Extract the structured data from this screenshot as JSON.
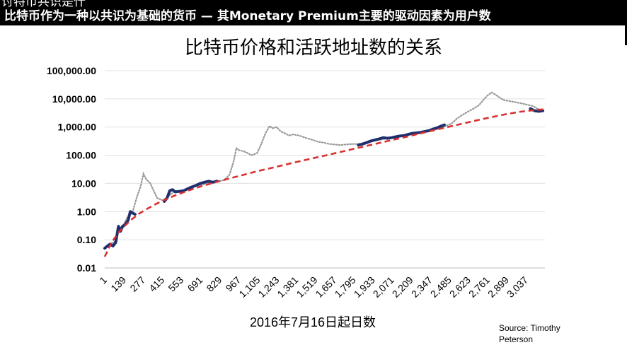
{
  "banner": {
    "top_partial": "讨特币共识是什",
    "headline": "比特币作为一种以共识为基础的货币 — 其Monetary Premium主要的驱动因素为用户数"
  },
  "source": {
    "line1": "Source: Timothy",
    "line2": "Peterson"
  },
  "chart_data": {
    "type": "line",
    "title": "比特币价格和活跃地址数的关系",
    "xlabel": "2016年7月16日起日数",
    "ylabel": "",
    "yscale": "log",
    "ylim": [
      0.01,
      100000
    ],
    "xlim": [
      1,
      3175
    ],
    "y_ticks": [
      {
        "value": 100000,
        "label": "100,000.00"
      },
      {
        "value": 10000,
        "label": "10,000.00"
      },
      {
        "value": 1000,
        "label": "1,000.00"
      },
      {
        "value": 100,
        "label": "100.00"
      },
      {
        "value": 10,
        "label": "10.00"
      },
      {
        "value": 1,
        "label": "1.00"
      },
      {
        "value": 0.1,
        "label": "0.10"
      },
      {
        "value": 0.01,
        "label": "0.01"
      }
    ],
    "x_ticks": [
      {
        "value": 1,
        "label": "1"
      },
      {
        "value": 139,
        "label": "139"
      },
      {
        "value": 277,
        "label": "277"
      },
      {
        "value": 415,
        "label": "415"
      },
      {
        "value": 553,
        "label": "553"
      },
      {
        "value": 691,
        "label": "691"
      },
      {
        "value": 829,
        "label": "829"
      },
      {
        "value": 967,
        "label": "967"
      },
      {
        "value": 1105,
        "label": "1,105"
      },
      {
        "value": 1243,
        "label": "1,243"
      },
      {
        "value": 1381,
        "label": "1,381"
      },
      {
        "value": 1519,
        "label": "1,519"
      },
      {
        "value": 1657,
        "label": "1,657"
      },
      {
        "value": 1795,
        "label": "1,795"
      },
      {
        "value": 1933,
        "label": "1,933"
      },
      {
        "value": 2071,
        "label": "2,071"
      },
      {
        "value": 2209,
        "label": "2,209"
      },
      {
        "value": 2347,
        "label": "2,347"
      },
      {
        "value": 2485,
        "label": "2,485"
      },
      {
        "value": 2623,
        "label": "2,623"
      },
      {
        "value": 2761,
        "label": "2,761"
      },
      {
        "value": 2899,
        "label": "2,899"
      },
      {
        "value": 3037,
        "label": "3,037"
      }
    ],
    "grid": "horizontal",
    "legend": "none",
    "series": [
      {
        "role": "price-dotted",
        "color": "#999999",
        "points": [
          [
            1,
            0.05
          ],
          [
            40,
            0.07
          ],
          [
            80,
            0.09
          ],
          [
            100,
            0.25
          ],
          [
            130,
            0.3
          ],
          [
            170,
            0.7
          ],
          [
            200,
            0.9
          ],
          [
            230,
            3
          ],
          [
            260,
            8
          ],
          [
            280,
            22
          ],
          [
            300,
            14
          ],
          [
            330,
            10
          ],
          [
            350,
            6
          ],
          [
            380,
            3
          ],
          [
            420,
            2.5
          ],
          [
            460,
            3.5
          ],
          [
            500,
            5
          ],
          [
            540,
            5.5
          ],
          [
            580,
            6
          ],
          [
            620,
            7
          ],
          [
            660,
            8
          ],
          [
            700,
            9
          ],
          [
            740,
            10
          ],
          [
            780,
            11
          ],
          [
            820,
            12
          ],
          [
            860,
            13
          ],
          [
            900,
            20
          ],
          [
            930,
            60
          ],
          [
            950,
            180
          ],
          [
            970,
            150
          ],
          [
            1000,
            140
          ],
          [
            1030,
            120
          ],
          [
            1060,
            100
          ],
          [
            1100,
            120
          ],
          [
            1130,
            250
          ],
          [
            1160,
            600
          ],
          [
            1190,
            1100
          ],
          [
            1210,
            900
          ],
          [
            1240,
            1000
          ],
          [
            1270,
            700
          ],
          [
            1300,
            600
          ],
          [
            1330,
            500
          ],
          [
            1360,
            550
          ],
          [
            1400,
            500
          ],
          [
            1430,
            450
          ],
          [
            1460,
            400
          ],
          [
            1500,
            350
          ],
          [
            1540,
            300
          ],
          [
            1580,
            280
          ],
          [
            1620,
            250
          ],
          [
            1660,
            240
          ],
          [
            1700,
            230
          ],
          [
            1740,
            240
          ],
          [
            1780,
            250
          ],
          [
            1820,
            250
          ],
          [
            1860,
            260
          ],
          [
            1900,
            290
          ],
          [
            1940,
            320
          ],
          [
            1980,
            350
          ],
          [
            2020,
            380
          ],
          [
            2060,
            400
          ],
          [
            2100,
            420
          ],
          [
            2140,
            480
          ],
          [
            2180,
            500
          ],
          [
            2220,
            580
          ],
          [
            2260,
            600
          ],
          [
            2300,
            650
          ],
          [
            2340,
            700
          ],
          [
            2380,
            800
          ],
          [
            2420,
            900
          ],
          [
            2460,
            1100
          ],
          [
            2500,
            1300
          ],
          [
            2540,
            2000
          ],
          [
            2580,
            2700
          ],
          [
            2620,
            3500
          ],
          [
            2660,
            4500
          ],
          [
            2700,
            6000
          ],
          [
            2730,
            9000
          ],
          [
            2760,
            13000
          ],
          [
            2790,
            17000
          ],
          [
            2820,
            14000
          ],
          [
            2850,
            11000
          ],
          [
            2880,
            9000
          ],
          [
            2910,
            8500
          ],
          [
            2940,
            8000
          ],
          [
            2970,
            7500
          ],
          [
            3000,
            7000
          ],
          [
            3030,
            6500
          ],
          [
            3060,
            6000
          ],
          [
            3090,
            5500
          ],
          [
            3120,
            4500
          ],
          [
            3150,
            4000
          ]
        ]
      },
      {
        "role": "price-solid",
        "color": "#1f2f6e",
        "segments": [
          [
            [
              1,
              0.05
            ],
            [
              20,
              0.06
            ],
            [
              40,
              0.07
            ],
            [
              60,
              0.06
            ],
            [
              80,
              0.08
            ],
            [
              100,
              0.3
            ],
            [
              115,
              0.2
            ],
            [
              130,
              0.3
            ],
            [
              150,
              0.35
            ],
            [
              170,
              0.5
            ],
            [
              185,
              1.0
            ],
            [
              200,
              0.9
            ],
            [
              220,
              0.8
            ]
          ],
          [
            [
              430,
              2.3
            ],
            [
              450,
              3
            ],
            [
              470,
              5.5
            ],
            [
              490,
              6
            ],
            [
              510,
              5
            ],
            [
              540,
              5.2
            ],
            [
              570,
              5.5
            ],
            [
              600,
              6.5
            ],
            [
              630,
              7.5
            ],
            [
              660,
              8.5
            ],
            [
              690,
              10
            ],
            [
              720,
              11
            ],
            [
              750,
              12
            ],
            [
              780,
              11
            ],
            [
              810,
              12
            ]
          ],
          [
            [
              1830,
              230
            ],
            [
              1860,
              250
            ],
            [
              1890,
              280
            ],
            [
              1920,
              320
            ],
            [
              1950,
              350
            ],
            [
              1980,
              380
            ],
            [
              2010,
              420
            ],
            [
              2040,
              400
            ],
            [
              2070,
              420
            ],
            [
              2100,
              450
            ],
            [
              2130,
              480
            ],
            [
              2160,
              500
            ],
            [
              2190,
              550
            ],
            [
              2220,
              600
            ],
            [
              2250,
              620
            ],
            [
              2280,
              650
            ],
            [
              2310,
              700
            ],
            [
              2340,
              750
            ],
            [
              2370,
              850
            ],
            [
              2400,
              950
            ],
            [
              2430,
              1100
            ],
            [
              2450,
              1200
            ]
          ],
          [
            [
              3070,
              4500
            ],
            [
              3100,
              3800
            ],
            [
              3130,
              3600
            ],
            [
              3160,
              3800
            ]
          ]
        ]
      },
      {
        "role": "active-address-fit-dashed",
        "color": "#d93030",
        "points": [
          [
            1,
            0.025
          ],
          [
            50,
            0.08
          ],
          [
            100,
            0.18
          ],
          [
            150,
            0.33
          ],
          [
            200,
            0.55
          ],
          [
            250,
            0.85
          ],
          [
            300,
            1.2
          ],
          [
            350,
            1.65
          ],
          [
            400,
            2.2
          ],
          [
            500,
            3.6
          ],
          [
            600,
            5.5
          ],
          [
            700,
            8
          ],
          [
            800,
            11
          ],
          [
            900,
            15
          ],
          [
            1000,
            20
          ],
          [
            1100,
            27
          ],
          [
            1200,
            35
          ],
          [
            1300,
            46
          ],
          [
            1400,
            60
          ],
          [
            1500,
            78
          ],
          [
            1600,
            100
          ],
          [
            1700,
            130
          ],
          [
            1800,
            170
          ],
          [
            1900,
            220
          ],
          [
            2000,
            285
          ],
          [
            2100,
            370
          ],
          [
            2200,
            480
          ],
          [
            2300,
            630
          ],
          [
            2400,
            820
          ],
          [
            2500,
            1070
          ],
          [
            2600,
            1390
          ],
          [
            2700,
            1800
          ],
          [
            2800,
            2300
          ],
          [
            2900,
            2900
          ],
          [
            3000,
            3500
          ],
          [
            3100,
            4000
          ],
          [
            3175,
            4300
          ]
        ]
      }
    ]
  }
}
